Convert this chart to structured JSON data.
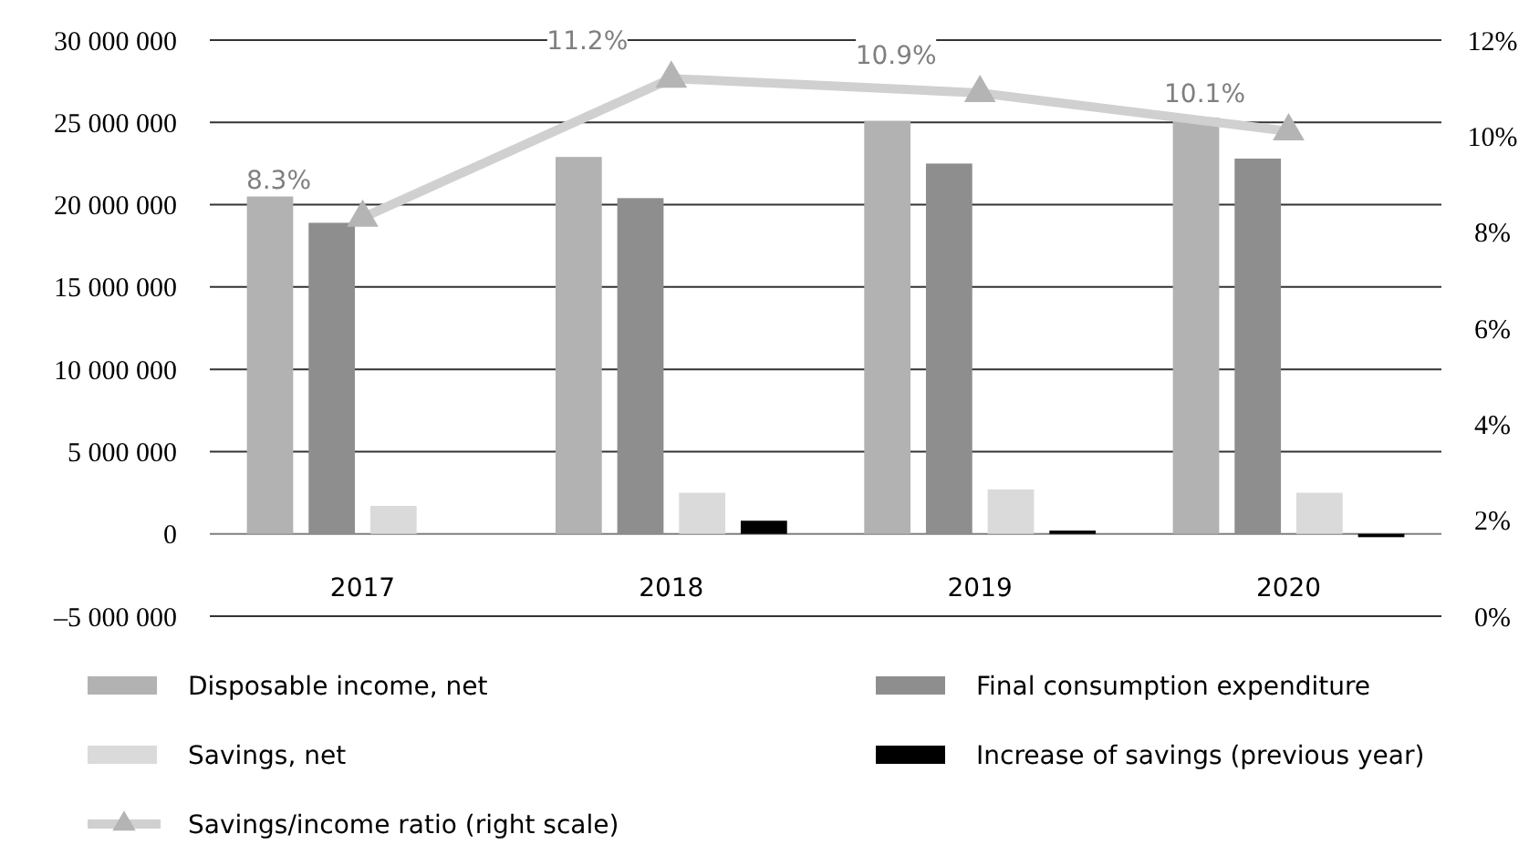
{
  "chart_data": {
    "type": "bar",
    "categories": [
      "2017",
      "2018",
      "2019",
      "2020"
    ],
    "series": [
      {
        "name": "Disposable income, net",
        "color": "#b2b2b2",
        "values": [
          20500000,
          22900000,
          25100000,
          25300000
        ]
      },
      {
        "name": "Final consumption expenditure",
        "color": "#8e8e8e",
        "values": [
          18900000,
          20400000,
          22500000,
          22800000
        ]
      },
      {
        "name": "Savings, net",
        "color": "#dadada",
        "values": [
          1700000,
          2500000,
          2700000,
          2500000
        ]
      },
      {
        "name": "Increase of savings (previous year)",
        "color": "#000000",
        "values": [
          0,
          800000,
          200000,
          -200000
        ]
      },
      {
        "name": "Savings/income ratio (right scale)",
        "type": "line",
        "axis": "y2",
        "color": "#d0d0d0",
        "marker": "triangle",
        "values": [
          8.3,
          11.2,
          10.9,
          10.1
        ],
        "value_labels": [
          "8.3%",
          "11.2%",
          "10.9%",
          "10.1%"
        ]
      }
    ],
    "ylim": [
      -5000000,
      30000000
    ],
    "yticks": [
      {
        "value": -5000000,
        "label": "–5 000 000"
      },
      {
        "value": 0,
        "label": "0"
      },
      {
        "value": 5000000,
        "label": "5 000 000"
      },
      {
        "value": 10000000,
        "label": "10 000 000"
      },
      {
        "value": 15000000,
        "label": "15 000 000"
      },
      {
        "value": 20000000,
        "label": "20 000 000"
      },
      {
        "value": 25000000,
        "label": "25 000 000"
      },
      {
        "value": 30000000,
        "label": "30 000 000"
      }
    ],
    "y2lim": [
      0,
      12
    ],
    "y2ticks": [
      {
        "value": 0,
        "label": "0%"
      },
      {
        "value": 2,
        "label": "2%"
      },
      {
        "value": 4,
        "label": "4%"
      },
      {
        "value": 6,
        "label": "6%"
      },
      {
        "value": 8,
        "label": "8%"
      },
      {
        "value": 10,
        "label": "10%"
      },
      {
        "value": 12,
        "label": "12%"
      }
    ],
    "grid": "y",
    "legend": "bottom"
  }
}
